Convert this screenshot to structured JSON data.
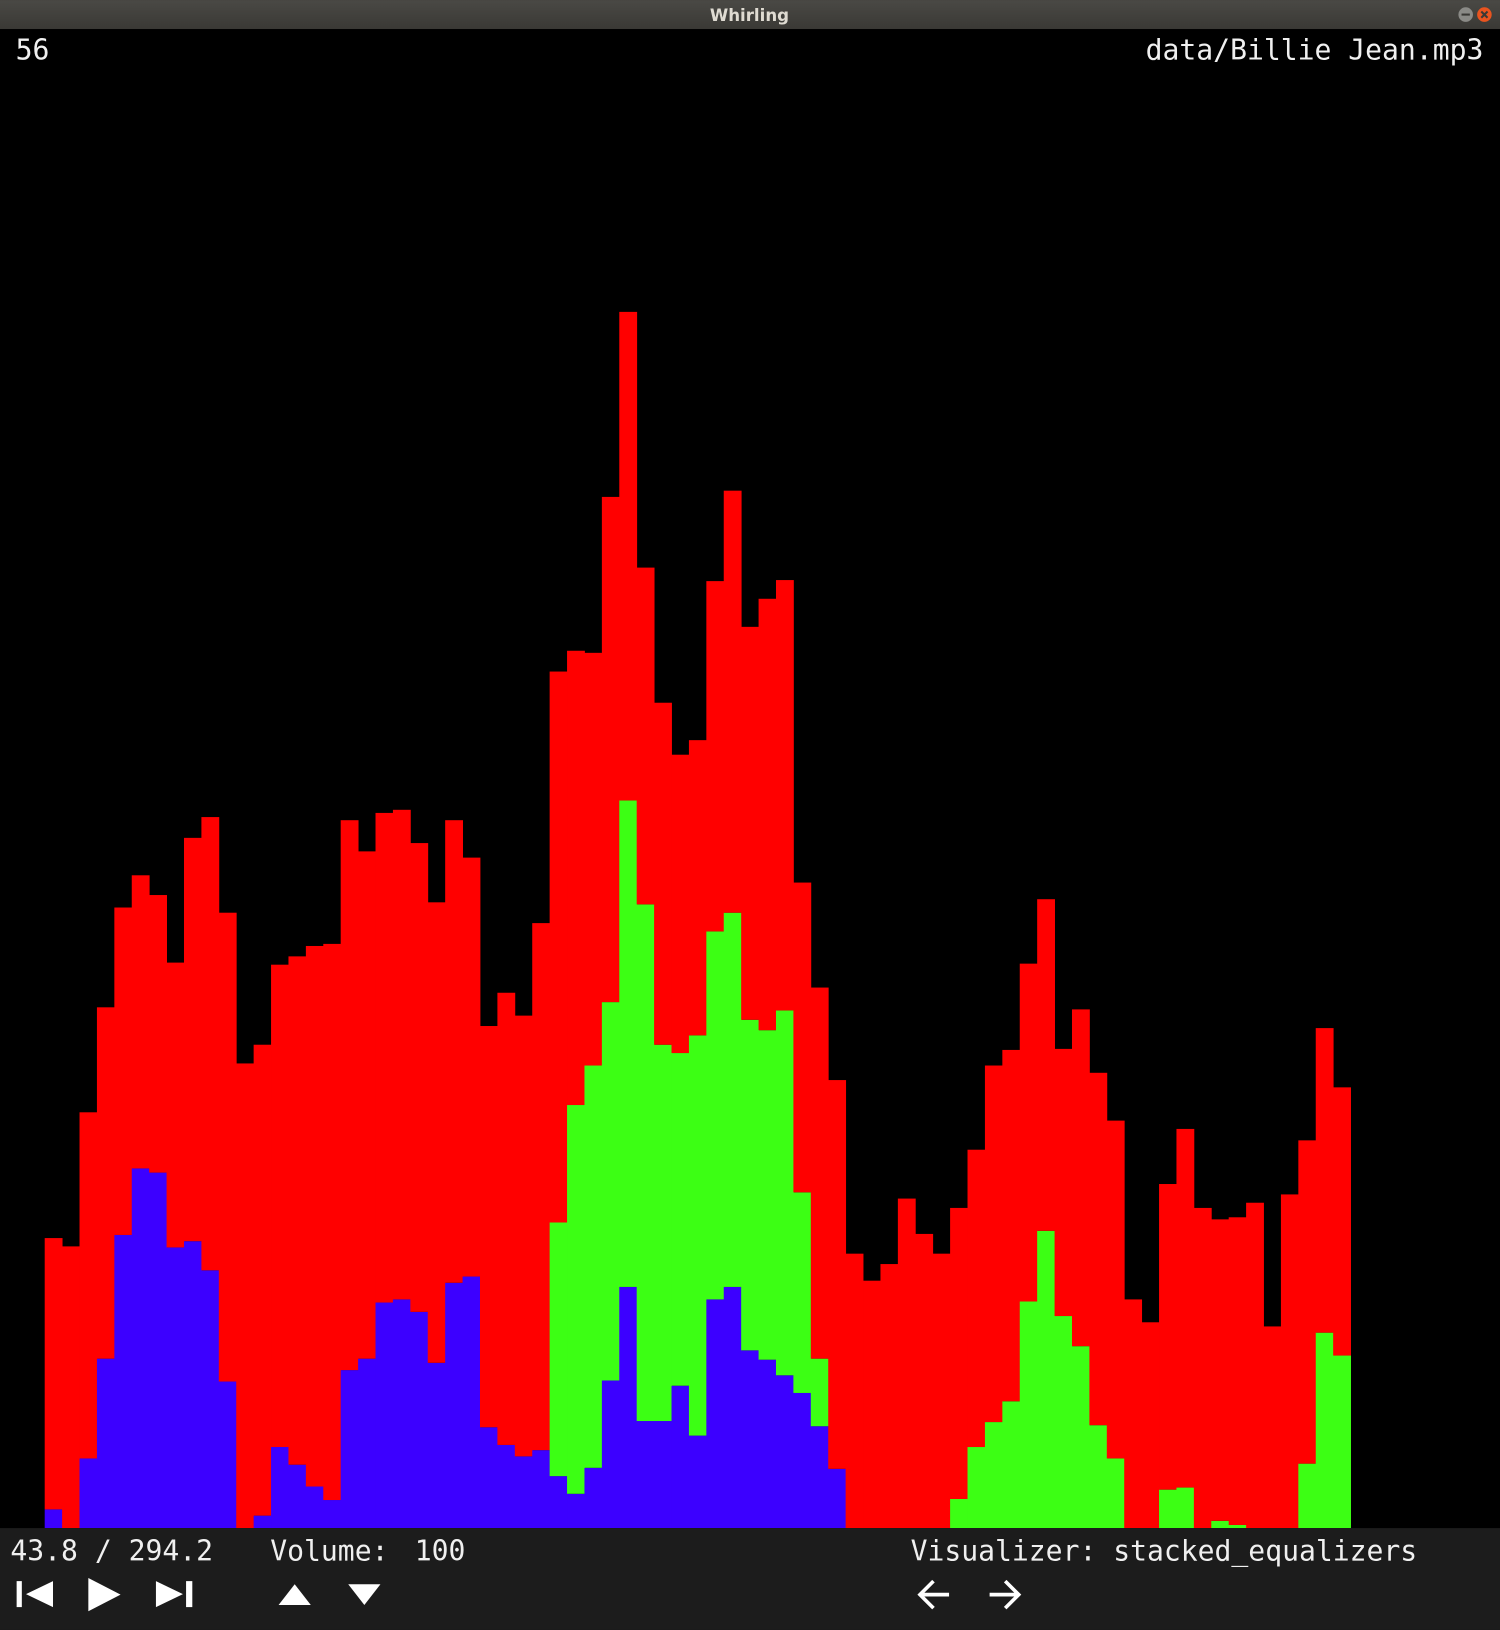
{
  "window": {
    "title": "Whirling"
  },
  "header": {
    "fps": 56,
    "file": "data/Billie Jean.mp3"
  },
  "chart_data": {
    "type": "stacked_bar",
    "ylim": [
      0,
      1442
    ],
    "series": [
      {
        "color": "#3c00ff",
        "values": [
          18,
          0,
          67,
          163,
          282,
          346,
          342,
          270,
          276,
          248,
          141,
          0,
          12,
          78,
          61,
          40,
          27,
          152,
          163,
          217,
          220,
          208,
          159,
          236,
          242,
          97,
          80,
          69,
          75,
          50,
          33,
          58,
          142,
          232,
          103,
          103,
          137,
          89,
          220,
          232,
          171,
          162,
          147,
          130,
          98,
          57,
          0,
          0,
          0,
          0,
          0,
          0,
          0,
          0,
          0,
          0,
          0,
          0,
          0,
          0,
          0,
          0,
          0,
          0,
          0,
          0,
          0,
          0,
          0,
          0,
          0,
          0,
          0,
          0,
          0
        ]
      },
      {
        "color": "#3cff14",
        "values": [
          0,
          0,
          0,
          0,
          0,
          0,
          0,
          0,
          0,
          0,
          0,
          0,
          0,
          0,
          0,
          0,
          0,
          0,
          0,
          0,
          0,
          0,
          0,
          0,
          0,
          0,
          0,
          0,
          0,
          244,
          374,
          387,
          364,
          468,
          497,
          362,
          320,
          385,
          354,
          360,
          318,
          317,
          351,
          193,
          65,
          0,
          0,
          0,
          0,
          0,
          0,
          0,
          28,
          78,
          102,
          122,
          218,
          286,
          204,
          175,
          99,
          67,
          0,
          0,
          37,
          39,
          0,
          7,
          3,
          0,
          0,
          0,
          62,
          188,
          166
        ]
      },
      {
        "color": "#ff0000",
        "values": [
          261,
          271,
          333,
          338,
          315,
          282,
          267,
          274,
          388,
          436,
          451,
          447,
          453,
          464,
          489,
          520,
          535,
          529,
          488,
          471,
          471,
          451,
          443,
          445,
          403,
          386,
          435,
          424,
          507,
          530,
          437,
          397,
          486,
          470,
          324,
          329,
          287,
          284,
          337,
          406,
          378,
          415,
          414,
          298,
          357,
          374,
          264,
          238,
          254,
          317,
          283,
          264,
          280,
          286,
          343,
          338,
          325,
          319,
          257,
          324,
          339,
          325,
          220,
          198,
          294,
          345,
          308,
          290,
          296,
          313,
          194,
          321,
          311,
          293,
          258
        ]
      }
    ]
  },
  "status": {
    "time": "43.8 / 294.2",
    "volume_label": "Volume:",
    "volume": 100,
    "visualizer": "Visualizer: stacked_equalizers"
  }
}
